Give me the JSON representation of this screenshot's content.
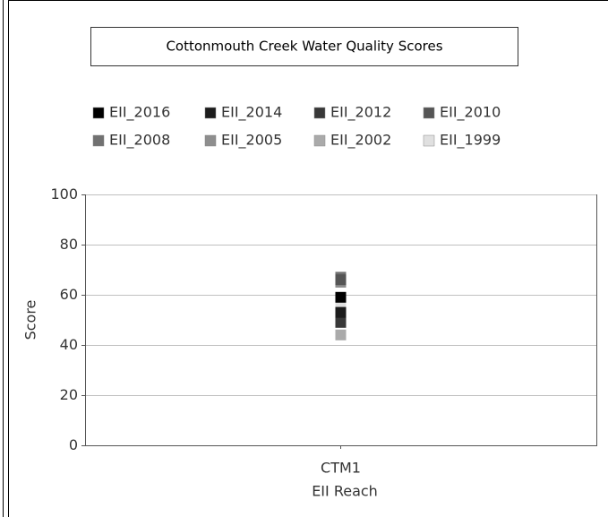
{
  "chart_data": {
    "type": "scatter",
    "title": "Cottonmouth Creek Water Quality Scores",
    "categories": [
      "CTM1"
    ],
    "x_label": "EII Reach",
    "y_label": "Score",
    "series": [
      {
        "name": "EII_2016",
        "color": "#000000",
        "values": [
          59
        ]
      },
      {
        "name": "EII_2014",
        "color": "#1c1c1c",
        "values": [
          53
        ]
      },
      {
        "name": "EII_2012",
        "color": "#383838",
        "values": [
          49
        ]
      },
      {
        "name": "EII_2010",
        "color": "#555555",
        "values": [
          66
        ]
      },
      {
        "name": "EII_2008",
        "color": "#717171",
        "values": [
          67
        ]
      },
      {
        "name": "EII_2005",
        "color": "#8e8e8e",
        "values": [
          65
        ]
      },
      {
        "name": "EII_2002",
        "color": "#aaaaaa",
        "values": [
          44
        ]
      },
      {
        "name": "EII_1999",
        "color": "#e0e0e0",
        "values": [
          55
        ]
      }
    ],
    "ylim": [
      0,
      100
    ],
    "yticks": [
      0,
      20,
      40,
      60,
      80,
      100
    ],
    "grid": true
  }
}
